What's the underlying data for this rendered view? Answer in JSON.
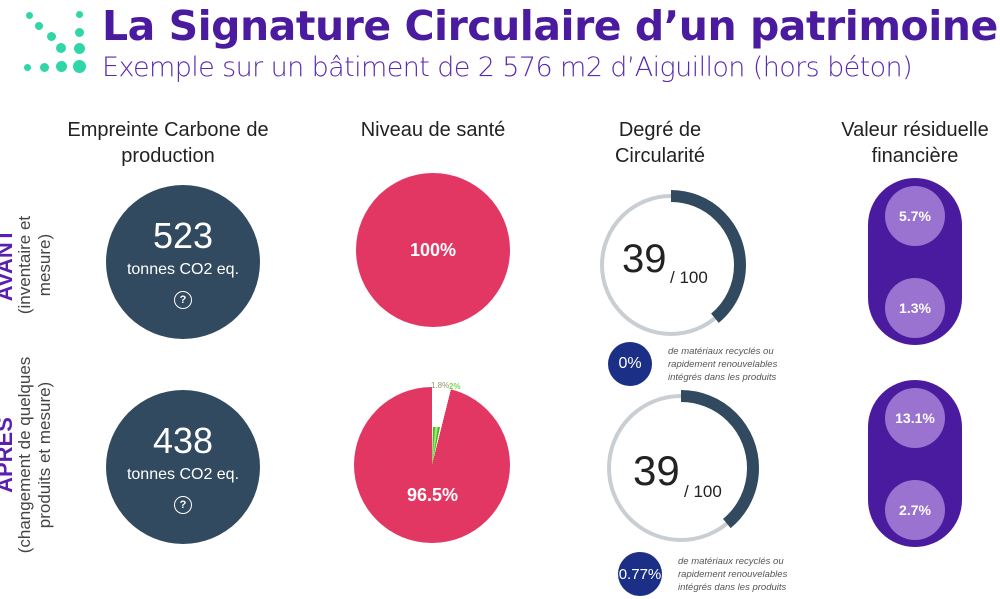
{
  "header": {
    "title": "La Signature Circulaire d’un patrimoine",
    "subtitle": "Exemple sur un bâtiment de 2 576 m2 d’Aiguillon (hors béton)"
  },
  "columns": {
    "carbon": "Empreinte Carbone de production",
    "health": "Niveau de santé",
    "circularity": "Degré de Circularité",
    "residual": "Valeur résiduelle financière"
  },
  "rows": {
    "before": {
      "label": "AVANT",
      "desc": "(inventaire et mesure)",
      "carbon": {
        "value": "523",
        "unit": "tonnes CO2 eq.",
        "help": "?"
      },
      "health": {
        "label": "100%",
        "value": 100
      },
      "circularity": {
        "value": "39",
        "max": "/ 100",
        "fraction": 0.39,
        "badge": "0%",
        "note": "de matériaux recyclés ou rapidement renouvelables intégrés dans les produits"
      },
      "residual": [
        "5.7%",
        "1.3%"
      ]
    },
    "after": {
      "label": "APRÈS",
      "desc": "(changement de quelques produits et mesure)",
      "carbon": {
        "value": "438",
        "unit": "tonnes CO2 eq.",
        "help": "?"
      },
      "health": {
        "label": "96.5%",
        "value": 96.5,
        "small1": "1.8%",
        "small2": "2%"
      },
      "circularity": {
        "value": "39",
        "max": "/ 100",
        "fraction": 0.39,
        "badge": "0.77%",
        "note": "de matériaux recyclés ou rapidement renouvelables intégrés dans les produits"
      },
      "residual": [
        "13.1%",
        "2.7%"
      ]
    }
  },
  "colors": {
    "purple": "#4b1b9f",
    "navy": "#324a5f",
    "red": "#e13762",
    "teal": "#2ed6a8"
  }
}
